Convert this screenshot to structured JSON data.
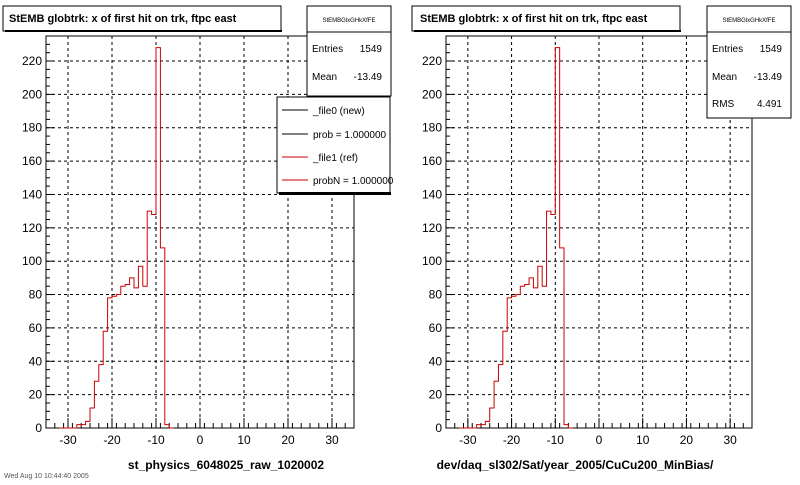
{
  "panels": [
    {
      "title": "StEMB globtrk: x of first hit on trk, ftpc east",
      "xlabel": "st_physics_6048025_raw_1020002",
      "stats": {
        "name": "StEMBGlxGHkXfFE",
        "rows": [
          {
            "label": "Entries",
            "value": "1549"
          },
          {
            "label": "Mean",
            "value": "-13.49"
          }
        ]
      },
      "legend": {
        "entries": [
          {
            "label": "_file0 (new)",
            "color": "#000000"
          },
          {
            "label": "prob = 1.000000",
            "color": "#000000"
          },
          {
            "label": "_file1 (ref)",
            "color": "#cc0000"
          },
          {
            "label": "probN = 1.000000",
            "color": "#cc0000"
          }
        ]
      }
    },
    {
      "title": "StEMB globtrk: x of first hit on trk, ftpc east",
      "xlabel": "dev/daq_sl302/Sat/year_2005/CuCu200_MinBias/",
      "stats": {
        "name": "StEMBGlxGHkXfFE",
        "rows": [
          {
            "label": "Entries",
            "value": "1549"
          },
          {
            "label": "Mean",
            "value": "-13.49"
          },
          {
            "label": "RMS",
            "value": "4.491"
          }
        ]
      }
    }
  ],
  "footer": "Wed Aug 10 10:44:40 2005",
  "chart_data": [
    {
      "type": "histogram",
      "title": "StEMB globtrk: x of first hit on trk, ftpc east",
      "xlabel": "st_physics_6048025_raw_1020002",
      "xlim": [
        -35,
        35
      ],
      "ylim": [
        0,
        235
      ],
      "xticks": [
        -30,
        -20,
        -10,
        0,
        10,
        20,
        30
      ],
      "yticks": [
        0,
        20,
        40,
        60,
        80,
        100,
        120,
        140,
        160,
        180,
        200,
        220
      ],
      "grid": true,
      "legend_position": "top-right",
      "bin_edges": [
        -32,
        -31,
        -30,
        -29,
        -28,
        -27,
        -26,
        -25,
        -24,
        -23,
        -22,
        -21,
        -20,
        -19,
        -18,
        -17,
        -16,
        -15,
        -14,
        -13,
        -12,
        -11,
        -10,
        -9,
        -8,
        -7,
        -6
      ],
      "series": [
        {
          "name": "_file1 (ref)",
          "color": "#cc0000",
          "values": [
            0,
            0,
            0,
            0,
            2,
            2,
            4,
            12,
            28,
            38,
            58,
            78,
            79,
            80,
            85,
            86,
            90,
            84,
            97,
            85,
            130,
            128,
            228,
            108,
            2,
            0
          ]
        }
      ]
    },
    {
      "type": "histogram",
      "title": "StEMB globtrk: x of first hit on trk, ftpc east",
      "xlabel": "dev/daq_sl302/Sat/year_2005/CuCu200_MinBias/",
      "xlim": [
        -35,
        35
      ],
      "ylim": [
        0,
        235
      ],
      "xticks": [
        -30,
        -20,
        -10,
        0,
        10,
        20,
        30
      ],
      "yticks": [
        0,
        20,
        40,
        60,
        80,
        100,
        120,
        140,
        160,
        180,
        200,
        220
      ],
      "grid": true,
      "bin_edges": [
        -32,
        -31,
        -30,
        -29,
        -28,
        -27,
        -26,
        -25,
        -24,
        -23,
        -22,
        -21,
        -20,
        -19,
        -18,
        -17,
        -16,
        -15,
        -14,
        -13,
        -12,
        -11,
        -10,
        -9,
        -8,
        -7,
        -6
      ],
      "series": [
        {
          "name": "",
          "color": "#cc0000",
          "values": [
            0,
            0,
            0,
            0,
            2,
            2,
            4,
            12,
            28,
            38,
            58,
            78,
            79,
            80,
            85,
            86,
            90,
            84,
            97,
            85,
            130,
            128,
            228,
            108,
            2,
            0
          ]
        }
      ]
    }
  ]
}
